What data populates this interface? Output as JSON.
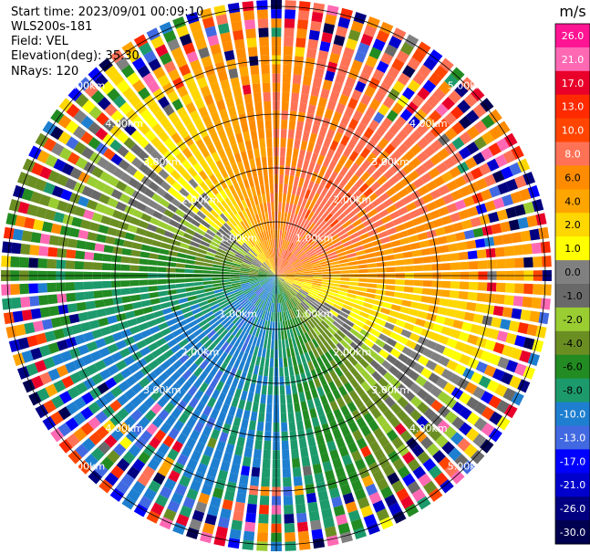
{
  "header": {
    "start_time": "Start time: 2023/09/01 00:09:10",
    "instrument": "WLS200s-181",
    "field": "Field: VEL",
    "elevation": "Elevation(deg): 35.30",
    "nrays": "NRays: 120"
  },
  "chart_data": {
    "type": "ppi-radial-velocity",
    "field": "VEL",
    "units": "m/s",
    "nrays": 120,
    "range_rings_km": [
      1,
      2,
      3,
      4,
      5
    ],
    "ring_labels": [
      "1.00km",
      "2.00km",
      "3.00km",
      "4.00km",
      "5.00km"
    ],
    "colorbar": {
      "title": "m/s",
      "levels": [
        "26.0",
        "21.0",
        "17.0",
        "13.0",
        "10.0",
        "8.0",
        "6.0",
        "4.0",
        "2.0",
        "1.0",
        "0.0",
        "-1.0",
        "-2.0",
        "-4.0",
        "-6.0",
        "-8.0",
        "-10.0",
        "-13.0",
        "-17.0",
        "-21.0",
        "-26.0",
        "-30.0"
      ],
      "colors": [
        "#ff1493",
        "#ff69b4",
        "#e8002a",
        "#ff2a00",
        "#ff4500",
        "#ff7256",
        "#ff8c00",
        "#ffa500",
        "#ffd700",
        "#ffff00",
        "#808080",
        "#696969",
        "#9acd32",
        "#6b8e23",
        "#228b22",
        "#1c9a6b",
        "#1e7fd0",
        "#4169e1",
        "#0000ff",
        "#0000cd",
        "#000080",
        "#000050"
      ]
    }
  }
}
